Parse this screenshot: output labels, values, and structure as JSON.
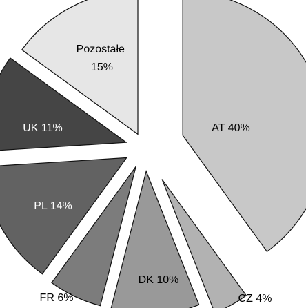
{
  "chart_data": {
    "type": "pie",
    "exploded": true,
    "series": [
      {
        "name": "",
        "values": [
          40,
          4,
          10,
          6,
          14,
          11,
          15
        ]
      }
    ],
    "slices": [
      {
        "key": "at",
        "label": "AT 40%",
        "value": 40,
        "color": "#c8c8c8",
        "text_color": "#000000"
      },
      {
        "key": "cz",
        "label": "CZ 4%",
        "value": 4,
        "color": "#b2b2b2",
        "text_color": "#000000"
      },
      {
        "key": "dk",
        "label": "DK 10%",
        "value": 10,
        "color": "#999999",
        "text_color": "#000000"
      },
      {
        "key": "fr",
        "label": "FR 6%",
        "value": 6,
        "color": "#7c7c7c",
        "text_color": "#000000"
      },
      {
        "key": "pl",
        "label": "PL 14%",
        "value": 14,
        "color": "#626262",
        "text_color": "#ffffff"
      },
      {
        "key": "uk",
        "label": "UK 11%",
        "value": 11,
        "color": "#454545",
        "text_color": "#ffffff"
      },
      {
        "key": "pozostale",
        "label": "Pozostałe 15%",
        "label_lines": [
          "Pozostałe",
          "15%"
        ],
        "value": 15,
        "color": "#e6e6e6",
        "text_color": "#000000"
      }
    ],
    "legend": "none",
    "grid": false
  }
}
